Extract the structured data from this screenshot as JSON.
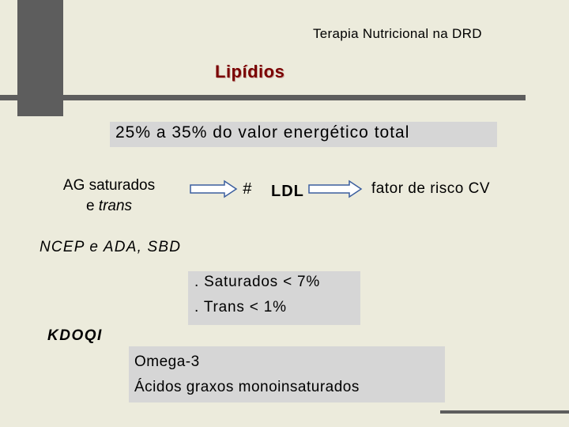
{
  "header": {
    "title": "Terapia Nutricional na DRD"
  },
  "slide": {
    "section_title": "Lipídios",
    "energy_range": "25% a 35% do valor energético total",
    "ag_line1": "AG saturados",
    "ag_line2_prefix": "e ",
    "ag_line2_italic": "trans",
    "hash_symbol": "#",
    "ldl": "LDL",
    "risk": "fator de risco CV",
    "ncep": "NCEP e ADA, SBD",
    "limits": [
      "Saturados < 7%",
      "Trans < 1%"
    ],
    "kdoqi": "KDOQI",
    "recommendations": [
      "Omega-3",
      "Ácidos graxos monoinsaturados"
    ]
  },
  "colors": {
    "background": "#ecebdc",
    "bars": "#5d5d5d",
    "title": "#7a0000",
    "box": "#d6d6d6",
    "arrow_stroke": "#3b5e9e"
  }
}
